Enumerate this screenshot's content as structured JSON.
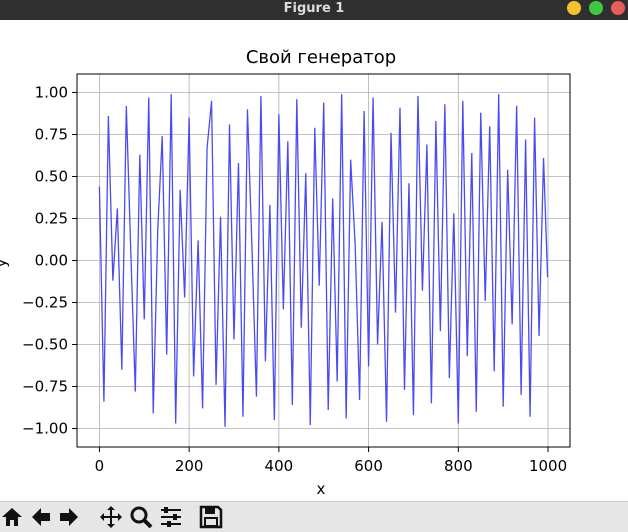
{
  "window": {
    "title": "Figure 1"
  },
  "chart_data": {
    "type": "line",
    "title": "Свой генератор",
    "xlabel": "x",
    "ylabel": "y",
    "x": [
      0,
      10,
      20,
      30,
      40,
      50,
      60,
      70,
      80,
      90,
      100,
      110,
      120,
      130,
      140,
      150,
      160,
      170,
      180,
      190,
      200,
      210,
      220,
      230,
      240,
      250,
      260,
      270,
      280,
      290,
      300,
      310,
      320,
      330,
      340,
      350,
      360,
      370,
      380,
      390,
      400,
      410,
      420,
      430,
      440,
      450,
      460,
      470,
      480,
      490,
      500,
      510,
      520,
      530,
      540,
      550,
      560,
      570,
      580,
      590,
      600,
      610,
      620,
      630,
      640,
      650,
      660,
      670,
      680,
      690,
      700,
      710,
      720,
      730,
      740,
      750,
      760,
      770,
      780,
      790,
      800,
      810,
      820,
      830,
      840,
      850,
      860,
      870,
      880,
      890,
      900,
      910,
      920,
      930,
      940,
      950,
      960,
      970,
      980,
      990,
      999
    ],
    "values": [
      0.44,
      -0.84,
      0.86,
      -0.12,
      0.31,
      -0.65,
      0.92,
      0.05,
      -0.78,
      0.63,
      -0.35,
      0.97,
      -0.91,
      0.18,
      0.74,
      -0.56,
      0.99,
      -0.97,
      0.42,
      -0.22,
      0.85,
      -0.69,
      0.12,
      -0.88,
      0.67,
      0.95,
      -0.74,
      0.26,
      -0.99,
      0.81,
      -0.47,
      0.58,
      -0.93,
      0.9,
      0.08,
      -0.81,
      0.98,
      -0.6,
      0.33,
      -0.95,
      0.87,
      -0.29,
      0.71,
      -0.86,
      0.96,
      -0.4,
      0.52,
      -0.98,
      0.79,
      -0.15,
      0.94,
      -0.89,
      0.37,
      -0.72,
      0.99,
      -0.94,
      0.6,
      0.1,
      -0.83,
      0.89,
      -0.63,
      0.97,
      -0.5,
      0.23,
      -0.96,
      0.76,
      -0.31,
      0.91,
      -0.77,
      0.46,
      -0.92,
      0.98,
      -0.18,
      0.69,
      -0.85,
      0.83,
      -0.42,
      0.93,
      -0.7,
      0.28,
      -0.97,
      0.95,
      -0.57,
      0.64,
      -0.9,
      0.88,
      -0.24,
      0.8,
      -0.66,
      0.99,
      -0.87,
      0.54,
      -0.38,
      0.92,
      -0.8,
      0.72,
      -0.93,
      0.85,
      -0.45,
      0.61,
      -0.1
    ],
    "color": "#4b4bef",
    "xlim": [
      -49.95,
      1048.95
    ],
    "ylim": [
      -1.11,
      1.11
    ],
    "xticks": [
      0,
      200,
      400,
      600,
      800,
      1000
    ],
    "yticks": [
      {
        "value": -1,
        "label": "−1.00"
      },
      {
        "value": -0.75,
        "label": "−0.75"
      },
      {
        "value": -0.5,
        "label": "−0.50"
      },
      {
        "value": -0.25,
        "label": "−0.25"
      },
      {
        "value": 0,
        "label": "0.00"
      },
      {
        "value": 0.25,
        "label": "0.25"
      },
      {
        "value": 0.5,
        "label": "0.50"
      },
      {
        "value": 0.75,
        "label": "0.75"
      },
      {
        "value": 1,
        "label": "1.00"
      }
    ],
    "grid": true
  }
}
